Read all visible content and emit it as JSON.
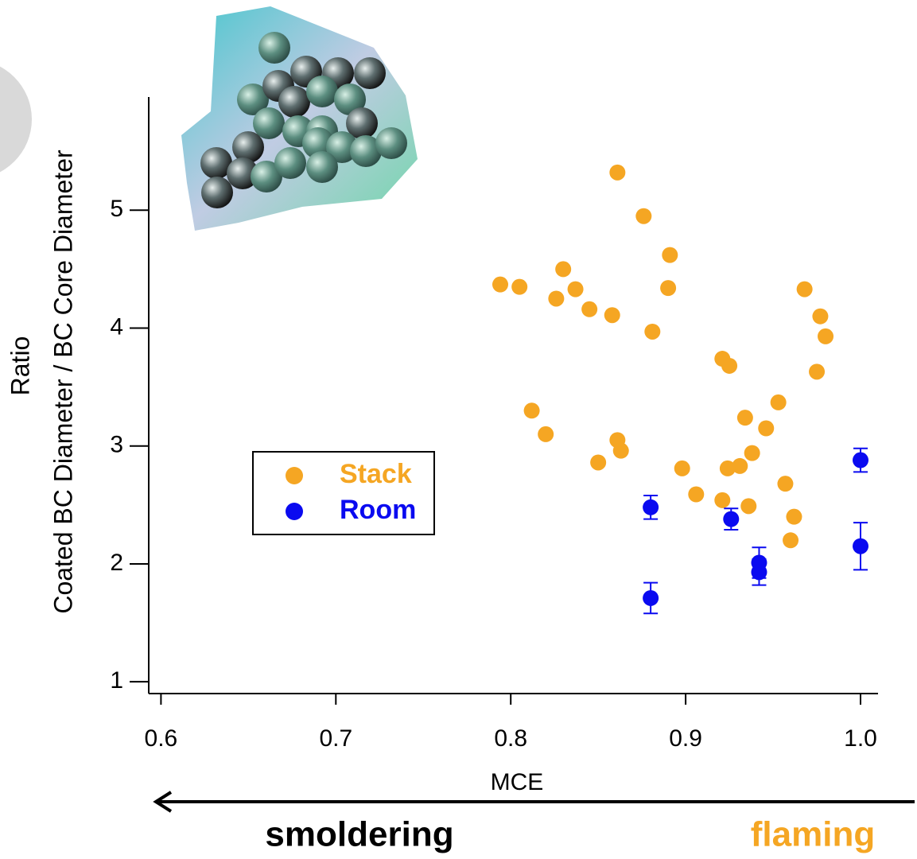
{
  "chart_data": {
    "type": "scatter",
    "x_label": "MCE",
    "y_label": [
      "Ratio",
      "Coated BC Diameter / BC Core Diameter"
    ],
    "annotations": [
      {
        "text": "smoldering",
        "color": "#000000"
      },
      {
        "text": "flaming",
        "color": "#f5a623"
      }
    ],
    "xlim": [
      0.593,
      1.01
    ],
    "ylim": [
      0.9,
      5.96
    ],
    "xticks": [
      0.6,
      0.7,
      0.8,
      0.9,
      {
        "value": 1,
        "label": "1.0"
      }
    ],
    "yticks": [
      1,
      2,
      3,
      4,
      5
    ],
    "legend": "center-left",
    "series": [
      {
        "name": "Stack",
        "color": "#f5a623",
        "x": [
          0.861,
          0.876,
          0.891,
          0.89,
          0.794,
          0.805,
          0.83,
          0.826,
          0.837,
          0.845,
          0.858,
          0.881,
          0.921,
          0.925,
          0.968,
          0.977,
          0.98,
          0.975,
          0.953,
          0.934,
          0.946,
          0.812,
          0.82,
          0.861,
          0.863,
          0.85,
          0.898,
          0.938,
          0.931,
          0.924,
          0.906,
          0.921,
          0.936,
          0.957,
          0.962,
          0.96
        ],
        "values": [
          5.32,
          4.95,
          4.62,
          4.34,
          4.37,
          4.35,
          4.5,
          4.25,
          4.33,
          4.16,
          4.11,
          3.97,
          3.74,
          3.68,
          4.33,
          4.1,
          3.93,
          3.63,
          3.37,
          3.24,
          3.15,
          3.3,
          3.1,
          3.05,
          2.96,
          2.86,
          2.81,
          2.94,
          2.83,
          2.81,
          2.59,
          2.54,
          2.49,
          2.68,
          2.4,
          2.2
        ]
      },
      {
        "name": "Room",
        "color": "#0a0af0",
        "x": [
          0.88,
          0.88,
          0.926,
          0.942,
          0.942,
          1.0,
          1.0
        ],
        "values": [
          2.48,
          1.71,
          2.38,
          2.01,
          1.93,
          2.88,
          2.15
        ],
        "errors": [
          0.1,
          0.13,
          0.09,
          0.13,
          0.11,
          0.1,
          0.2
        ]
      }
    ]
  }
}
